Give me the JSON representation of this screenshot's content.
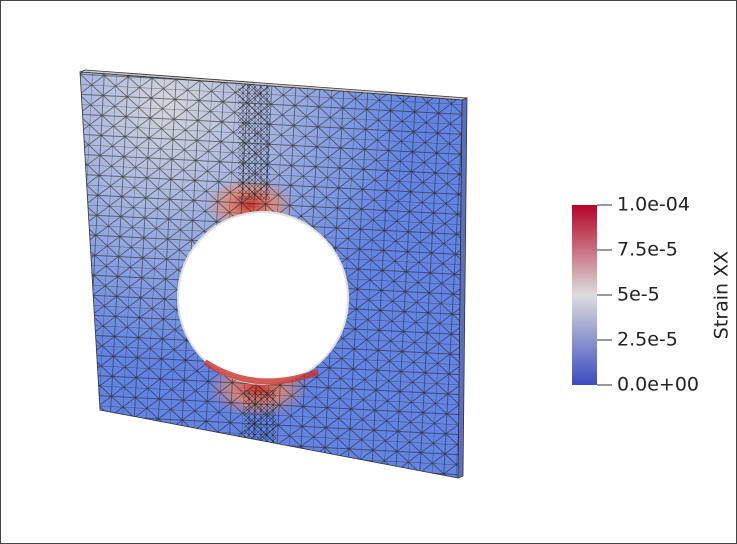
{
  "colorbar": {
    "title": "Strain XX",
    "range": [
      0,
      0.0001
    ],
    "ticks": [
      {
        "value": 0.0001,
        "label": "1.0e-04"
      },
      {
        "value": 7.5e-05,
        "label": "7.5e-5"
      },
      {
        "value": 5e-05,
        "label": "5e-5"
      },
      {
        "value": 2.5e-05,
        "label": "2.5e-5"
      },
      {
        "value": 0,
        "label": "0.0e+00"
      }
    ]
  }
}
